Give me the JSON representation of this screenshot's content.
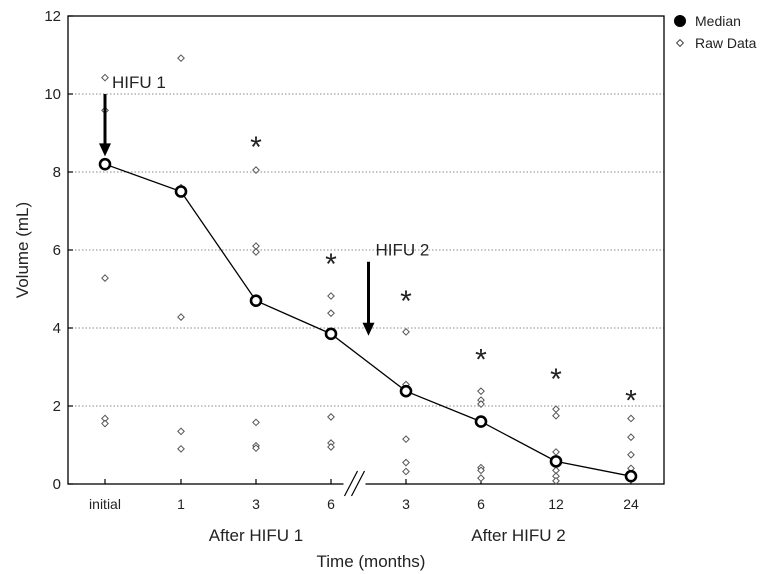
{
  "chart_data": {
    "type": "scatter",
    "xlabel": "Time (months)",
    "ylabel": "Volume (mL)",
    "ylim": [
      0,
      12
    ],
    "yticks": [
      0,
      2,
      4,
      6,
      8,
      10,
      12
    ],
    "grid": "horizontal dotted",
    "categories": [
      "initial",
      "1",
      "3",
      "6",
      "3",
      "6",
      "12",
      "24"
    ],
    "group_labels": [
      {
        "label": "After HIFU 1",
        "from": 1,
        "to": 3
      },
      {
        "label": "After HIFU 2",
        "from": 4,
        "to": 7
      }
    ],
    "axis_break_after_index": 3,
    "legend": {
      "position": "top-right",
      "entries": [
        {
          "label": "Median",
          "marker": "filled-circle"
        },
        {
          "label": "Raw Data",
          "marker": "open-diamond"
        }
      ]
    },
    "series": [
      {
        "name": "Median",
        "style": "line+circle",
        "values": [
          8.2,
          7.5,
          4.7,
          3.85,
          2.38,
          1.6,
          0.58,
          0.2
        ]
      },
      {
        "name": "Raw Data",
        "style": "diamond",
        "points": [
          [
            0,
            10.42
          ],
          [
            0,
            9.58
          ],
          [
            0,
            8.2
          ],
          [
            0,
            5.28
          ],
          [
            0,
            1.68
          ],
          [
            0,
            1.55
          ],
          [
            1,
            10.92
          ],
          [
            1,
            7.6
          ],
          [
            1,
            7.45
          ],
          [
            1,
            4.28
          ],
          [
            1,
            1.35
          ],
          [
            1,
            0.9
          ],
          [
            2,
            8.05
          ],
          [
            2,
            6.1
          ],
          [
            2,
            5.95
          ],
          [
            2,
            4.7
          ],
          [
            2,
            1.58
          ],
          [
            2,
            0.98
          ],
          [
            2,
            0.92
          ],
          [
            3,
            4.82
          ],
          [
            3,
            4.38
          ],
          [
            3,
            3.85
          ],
          [
            3,
            1.72
          ],
          [
            3,
            1.05
          ],
          [
            3,
            0.95
          ],
          [
            4,
            3.9
          ],
          [
            4,
            2.55
          ],
          [
            4,
            2.38
          ],
          [
            4,
            1.15
          ],
          [
            4,
            0.55
          ],
          [
            4,
            0.32
          ],
          [
            5,
            2.38
          ],
          [
            5,
            2.15
          ],
          [
            5,
            2.05
          ],
          [
            5,
            1.6
          ],
          [
            5,
            0.42
          ],
          [
            5,
            0.35
          ],
          [
            5,
            0.15
          ],
          [
            6,
            1.92
          ],
          [
            6,
            1.75
          ],
          [
            6,
            0.82
          ],
          [
            6,
            0.58
          ],
          [
            6,
            0.35
          ],
          [
            6,
            0.2
          ],
          [
            6,
            0.08
          ],
          [
            7,
            1.68
          ],
          [
            7,
            1.2
          ],
          [
            7,
            0.75
          ],
          [
            7,
            0.4
          ],
          [
            7,
            0.25
          ],
          [
            7,
            0.12
          ]
        ]
      }
    ],
    "annotations": [
      {
        "text": "HIFU 1",
        "type": "arrow",
        "x_index": 0,
        "y_from": 10.0,
        "y_to": 8.4
      },
      {
        "text": "HIFU 2",
        "type": "arrow",
        "x_index": 3.5,
        "y_from": 5.7,
        "y_to": 3.8
      }
    ],
    "significance_markers": [
      {
        "symbol": "*",
        "x_index": 2,
        "y": 8.75
      },
      {
        "symbol": "*",
        "x_index": 3,
        "y": 5.75
      },
      {
        "symbol": "*",
        "x_index": 4,
        "y": 4.8
      },
      {
        "symbol": "*",
        "x_index": 5,
        "y": 3.3
      },
      {
        "symbol": "*",
        "x_index": 6,
        "y": 2.8
      },
      {
        "symbol": "*",
        "x_index": 7,
        "y": 2.25
      }
    ]
  }
}
